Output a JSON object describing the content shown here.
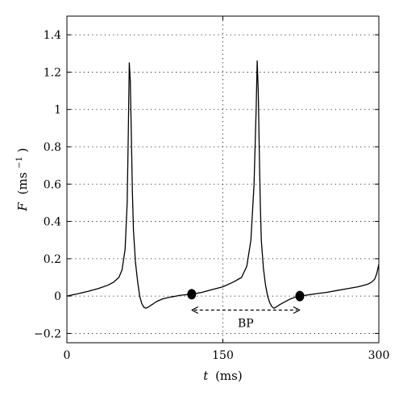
{
  "chart_data": {
    "type": "line",
    "title": "",
    "xlabel": {
      "var": "t",
      "unit": "(ms)"
    },
    "ylabel": {
      "var": "F",
      "unit": "(ms",
      "unit_sup": "−1",
      "unit_close": ")"
    },
    "xlim": [
      0,
      300
    ],
    "ylim": [
      -0.25,
      1.5
    ],
    "xticks": [
      0,
      150,
      300
    ],
    "xtick_labels": [
      "0",
      "150",
      "300"
    ],
    "yticks": [
      -0.2,
      0,
      0.2,
      0.4,
      0.6,
      0.8,
      1,
      1.2,
      1.4
    ],
    "ytick_labels": [
      "−0.2",
      "0",
      "0.2",
      "0.4",
      "0.6",
      "0.8",
      "1",
      "1.2",
      "1.4"
    ],
    "grid": true,
    "grid_style": "dotted",
    "series": [
      {
        "color": "#000000",
        "x": [
          0,
          10,
          20,
          30,
          40,
          45,
          50,
          53,
          56,
          58,
          59,
          60,
          61,
          62,
          63,
          64,
          66,
          68,
          70,
          72,
          74,
          76,
          78,
          82,
          86,
          92,
          100,
          110,
          120,
          130,
          140,
          150,
          160,
          168,
          173,
          177,
          180,
          182,
          183,
          184,
          185,
          186,
          187,
          189,
          191,
          193,
          195,
          197,
          199,
          201,
          205,
          210,
          215,
          220,
          230,
          240,
          250,
          260,
          270,
          280,
          285,
          290,
          293,
          296,
          298,
          300
        ],
        "y": [
          0.0,
          0.012,
          0.025,
          0.04,
          0.06,
          0.075,
          0.1,
          0.14,
          0.25,
          0.5,
          0.85,
          1.25,
          1.15,
          0.85,
          0.55,
          0.35,
          0.18,
          0.08,
          0.0,
          -0.04,
          -0.06,
          -0.065,
          -0.06,
          -0.045,
          -0.03,
          -0.015,
          -0.005,
          0.005,
          0.01,
          0.02,
          0.035,
          0.05,
          0.075,
          0.1,
          0.16,
          0.3,
          0.6,
          1.0,
          1.26,
          1.1,
          0.8,
          0.5,
          0.3,
          0.15,
          0.06,
          0.0,
          -0.035,
          -0.055,
          -0.065,
          -0.06,
          -0.045,
          -0.03,
          -0.015,
          -0.005,
          0.005,
          0.013,
          0.02,
          0.03,
          0.04,
          0.05,
          0.057,
          0.065,
          0.075,
          0.09,
          0.12,
          0.17
        ]
      }
    ],
    "markers": [
      {
        "x": 120,
        "y": 0.01
      },
      {
        "x": 224,
        "y": 0.0
      }
    ],
    "annotation": {
      "label": "BP",
      "x_start": 120,
      "x_end": 224,
      "y": -0.075,
      "style": "dashed double arrow"
    }
  }
}
